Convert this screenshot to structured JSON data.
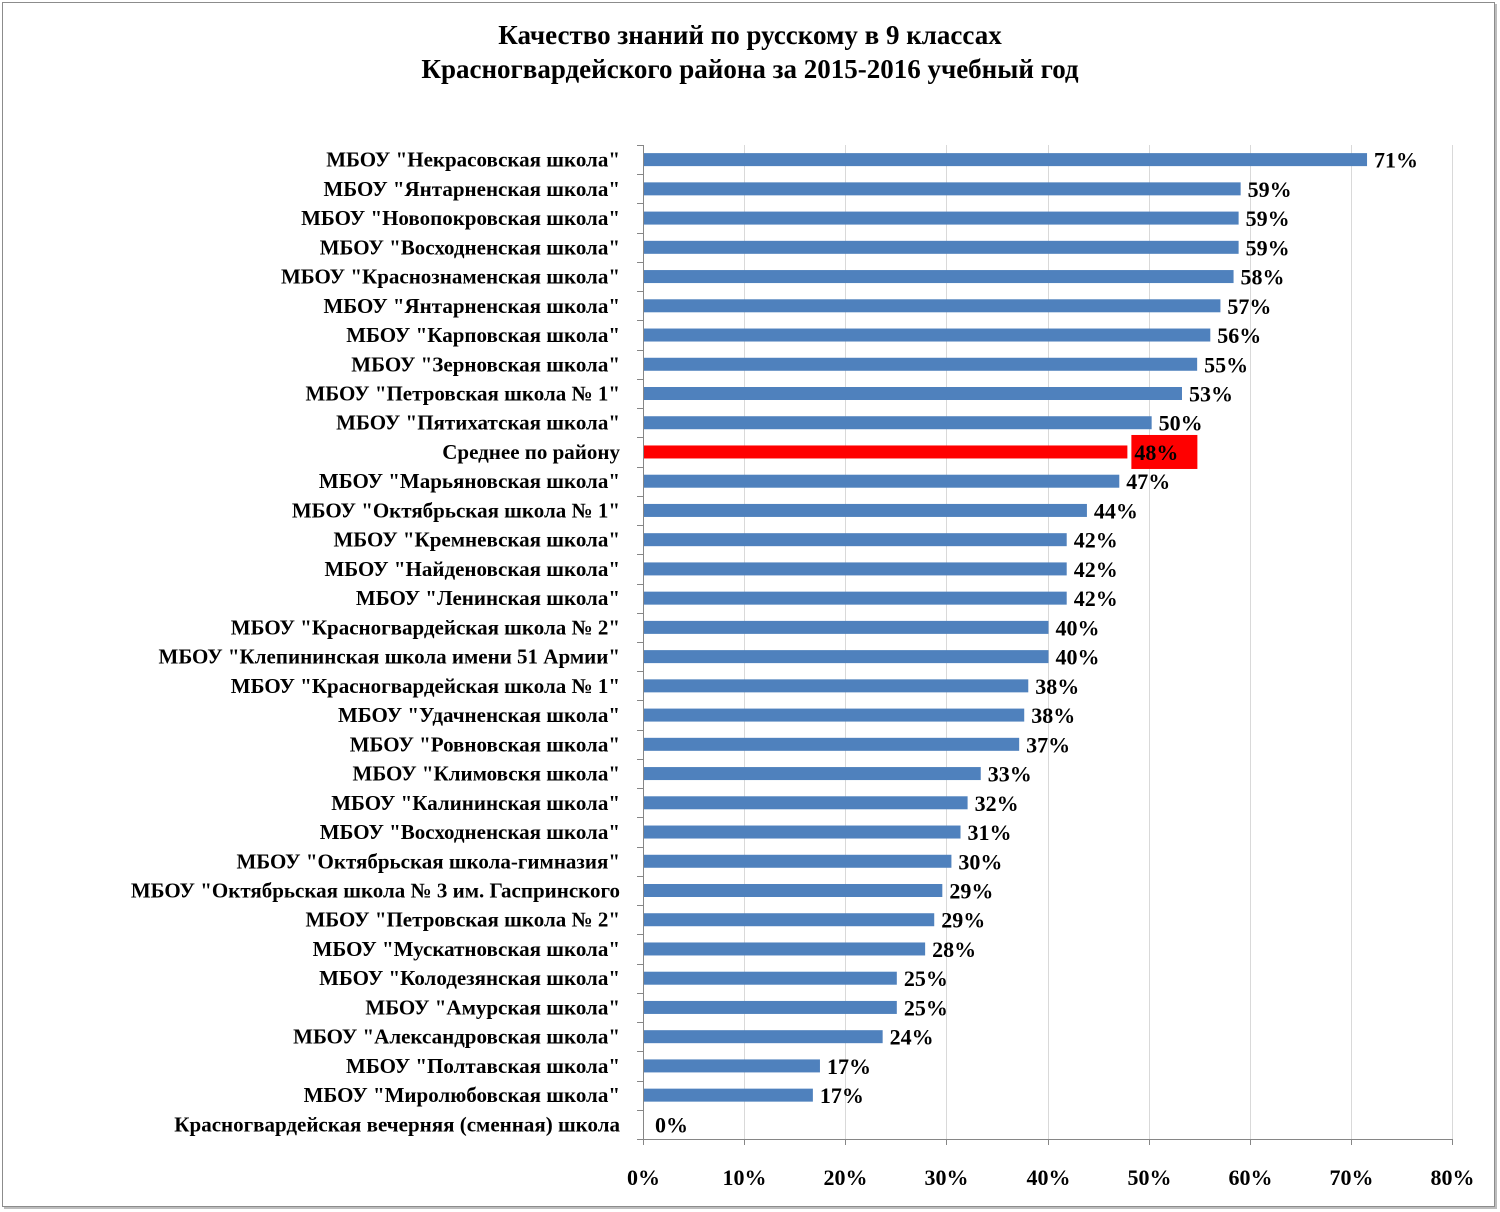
{
  "chart_data": {
    "type": "bar",
    "orientation": "horizontal",
    "title_lines": [
      "Качество знаний по русскому в 9 классах",
      "Красногвардейского района за 2015-2016 учебный год"
    ],
    "categories": [
      "МБОУ \"Некрасовская школа\"",
      "МБОУ \"Янтарненская школа\"",
      "МБОУ \"Новопокровская школа\"",
      "МБОУ \"Восходненская школа\"",
      "МБОУ \"Краснознаменская школа\"",
      "МБОУ \"Янтарненская школа\"",
      "МБОУ \"Карповская школа\"",
      "МБОУ \"Зерновская школа\"",
      "МБОУ \"Петровская школа № 1\"",
      "МБОУ \"Пятихатская школа\"",
      "Среднее по району",
      "МБОУ \"Марьяновская школа\"",
      "МБОУ \"Октябрьская школа № 1\"",
      "МБОУ \"Кремневская школа\"",
      "МБОУ \"Найденовская школа\"",
      "МБОУ \"Ленинская школа\"",
      "МБОУ \"Красногвардейская школа № 2\"",
      "МБОУ \"Клепининская школа имени 51 Армии\"",
      "МБОУ \"Красногвардейская школа № 1\"",
      "МБОУ \"Удачненская школа\"",
      "МБОУ \"Ровновская школа\"",
      "МБОУ \"Климовскя школа\"",
      "МБОУ \"Калининская школа\"",
      "МБОУ \"Восходненская школа\"",
      "МБОУ \"Октябрьская школа-гимназия\"",
      "МБОУ \"Октябрьская школа № 3 им. Гаспринского",
      "МБОУ \"Петровская школа № 2\"",
      "МБОУ \"Мускатновская школа\"",
      "МБОУ \"Колодезянская школа\"",
      "МБОУ \"Амурская школа\"",
      "МБОУ \"Александровская школа\"",
      "МБОУ \"Полтавская школа\"",
      "МБОУ \"Миролюбовская школа\"",
      "Красногвардейская вечерняя (сменная) школа"
    ],
    "values": [
      0.715,
      0.59,
      0.588,
      0.588,
      0.583,
      0.57,
      0.56,
      0.547,
      0.532,
      0.502,
      0.478,
      0.47,
      0.438,
      0.418,
      0.418,
      0.418,
      0.4,
      0.4,
      0.38,
      0.376,
      0.371,
      0.333,
      0.32,
      0.313,
      0.304,
      0.295,
      0.287,
      0.278,
      0.25,
      0.25,
      0.236,
      0.174,
      0.167,
      0.0
    ],
    "value_labels": [
      "71%",
      "59%",
      "59%",
      "59%",
      "58%",
      "57%",
      "56%",
      "55%",
      "53%",
      "50%",
      "48%",
      "47%",
      "44%",
      "42%",
      "42%",
      "42%",
      "40%",
      "40%",
      "38%",
      "38%",
      "37%",
      "33%",
      "32%",
      "31%",
      "30%",
      "29%",
      "29%",
      "28%",
      "25%",
      "25%",
      "24%",
      "17%",
      "17%",
      "0%"
    ],
    "highlight_index": 10,
    "xlim": [
      0,
      0.8
    ],
    "x_ticks": [
      0,
      0.1,
      0.2,
      0.3,
      0.4,
      0.5,
      0.6,
      0.7,
      0.8
    ],
    "x_tick_labels": [
      "0%",
      "10%",
      "20%",
      "30%",
      "40%",
      "50%",
      "60%",
      "70%",
      "80%"
    ],
    "grid": "vertical",
    "legend": "none",
    "colors": {
      "bar": "#4f81bd",
      "highlight": "#ff0000",
      "grid": "#d9d9d9",
      "axis": "#868686"
    }
  }
}
